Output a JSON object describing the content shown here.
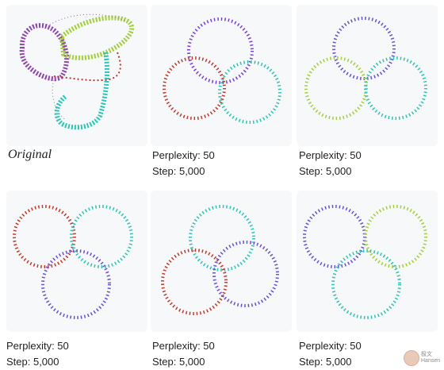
{
  "original": {
    "title": "Original"
  },
  "panels": [
    {
      "perplexity": "Perplexity: 50",
      "step": "Step: 5,000"
    },
    {
      "perplexity": "Perplexity: 50",
      "step": "Step: 5,000"
    },
    {
      "perplexity": "Perplexity: 50",
      "step": "Step: 5,000"
    },
    {
      "perplexity": "Perplexity: 50",
      "step": "Step: 5,000"
    },
    {
      "perplexity": "Perplexity: 50",
      "step": "Step: 5,000"
    }
  ],
  "watermark": {
    "line1": "极文",
    "line2": "Hansen"
  },
  "colors": {
    "panel_bg": "#f7f8fa",
    "purple": "#7b3fd6",
    "green": "#a4cf3a",
    "teal": "#2ec4b6",
    "red": "#c0392b"
  }
}
